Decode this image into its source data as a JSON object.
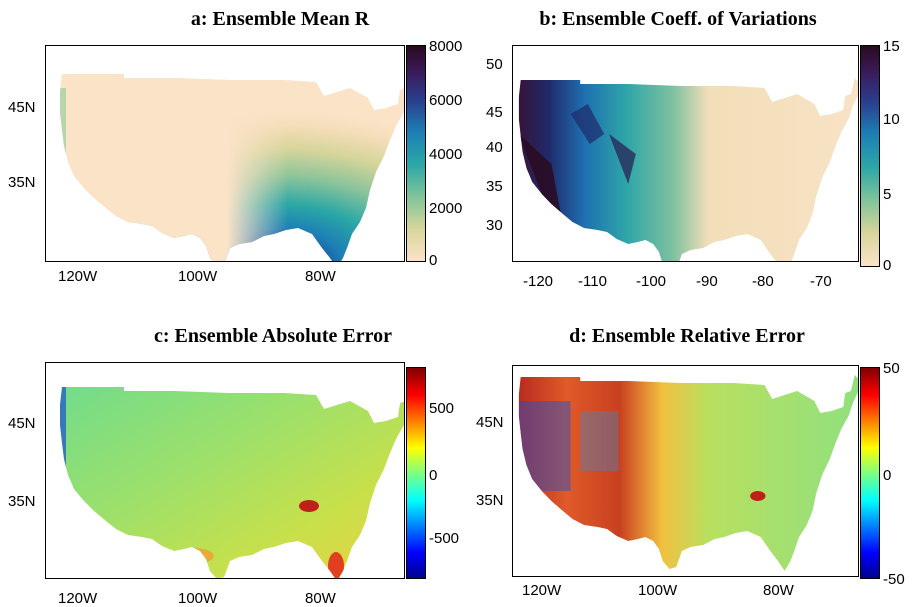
{
  "panels": [
    {
      "id": "a",
      "title": "a: Ensemble Mean R",
      "y_ticks": [
        "45N",
        "35N"
      ],
      "x_ticks": [
        "120W",
        "100W",
        "80W"
      ],
      "colorbar_ticks": [
        "8000",
        "6000",
        "4000",
        "2000",
        "0"
      ],
      "colorbar_range": [
        0,
        8000
      ],
      "colormap": "parula-like (cream to teal to navy to dark purple)"
    },
    {
      "id": "b",
      "title": "b: Ensemble Coeff. of Variations",
      "y_ticks": [
        "50",
        "45",
        "40",
        "35",
        "30"
      ],
      "x_ticks": [
        "-120",
        "-110",
        "-100",
        "-90",
        "-80",
        "-70"
      ],
      "colorbar_ticks": [
        "15",
        "10",
        "5",
        "0"
      ],
      "colorbar_range": [
        0,
        15
      ],
      "colormap": "cream to teal to navy to dark purple"
    },
    {
      "id": "c",
      "title": "c: Ensemble Absolute Error",
      "y_ticks": [
        "45N",
        "35N"
      ],
      "x_ticks": [
        "120W",
        "100W",
        "80W"
      ],
      "colorbar_ticks": [
        "500",
        "0",
        "-500"
      ],
      "colorbar_range": [
        -800,
        800
      ],
      "colormap": "jet"
    },
    {
      "id": "d",
      "title": "d: Ensemble Relative Error",
      "y_ticks": [
        "45N",
        "35N"
      ],
      "x_ticks": [
        "120W",
        "100W",
        "80W"
      ],
      "colorbar_ticks": [
        "50",
        "0",
        "-50"
      ],
      "colorbar_range": [
        -50,
        50
      ],
      "colormap": "jet"
    }
  ]
}
